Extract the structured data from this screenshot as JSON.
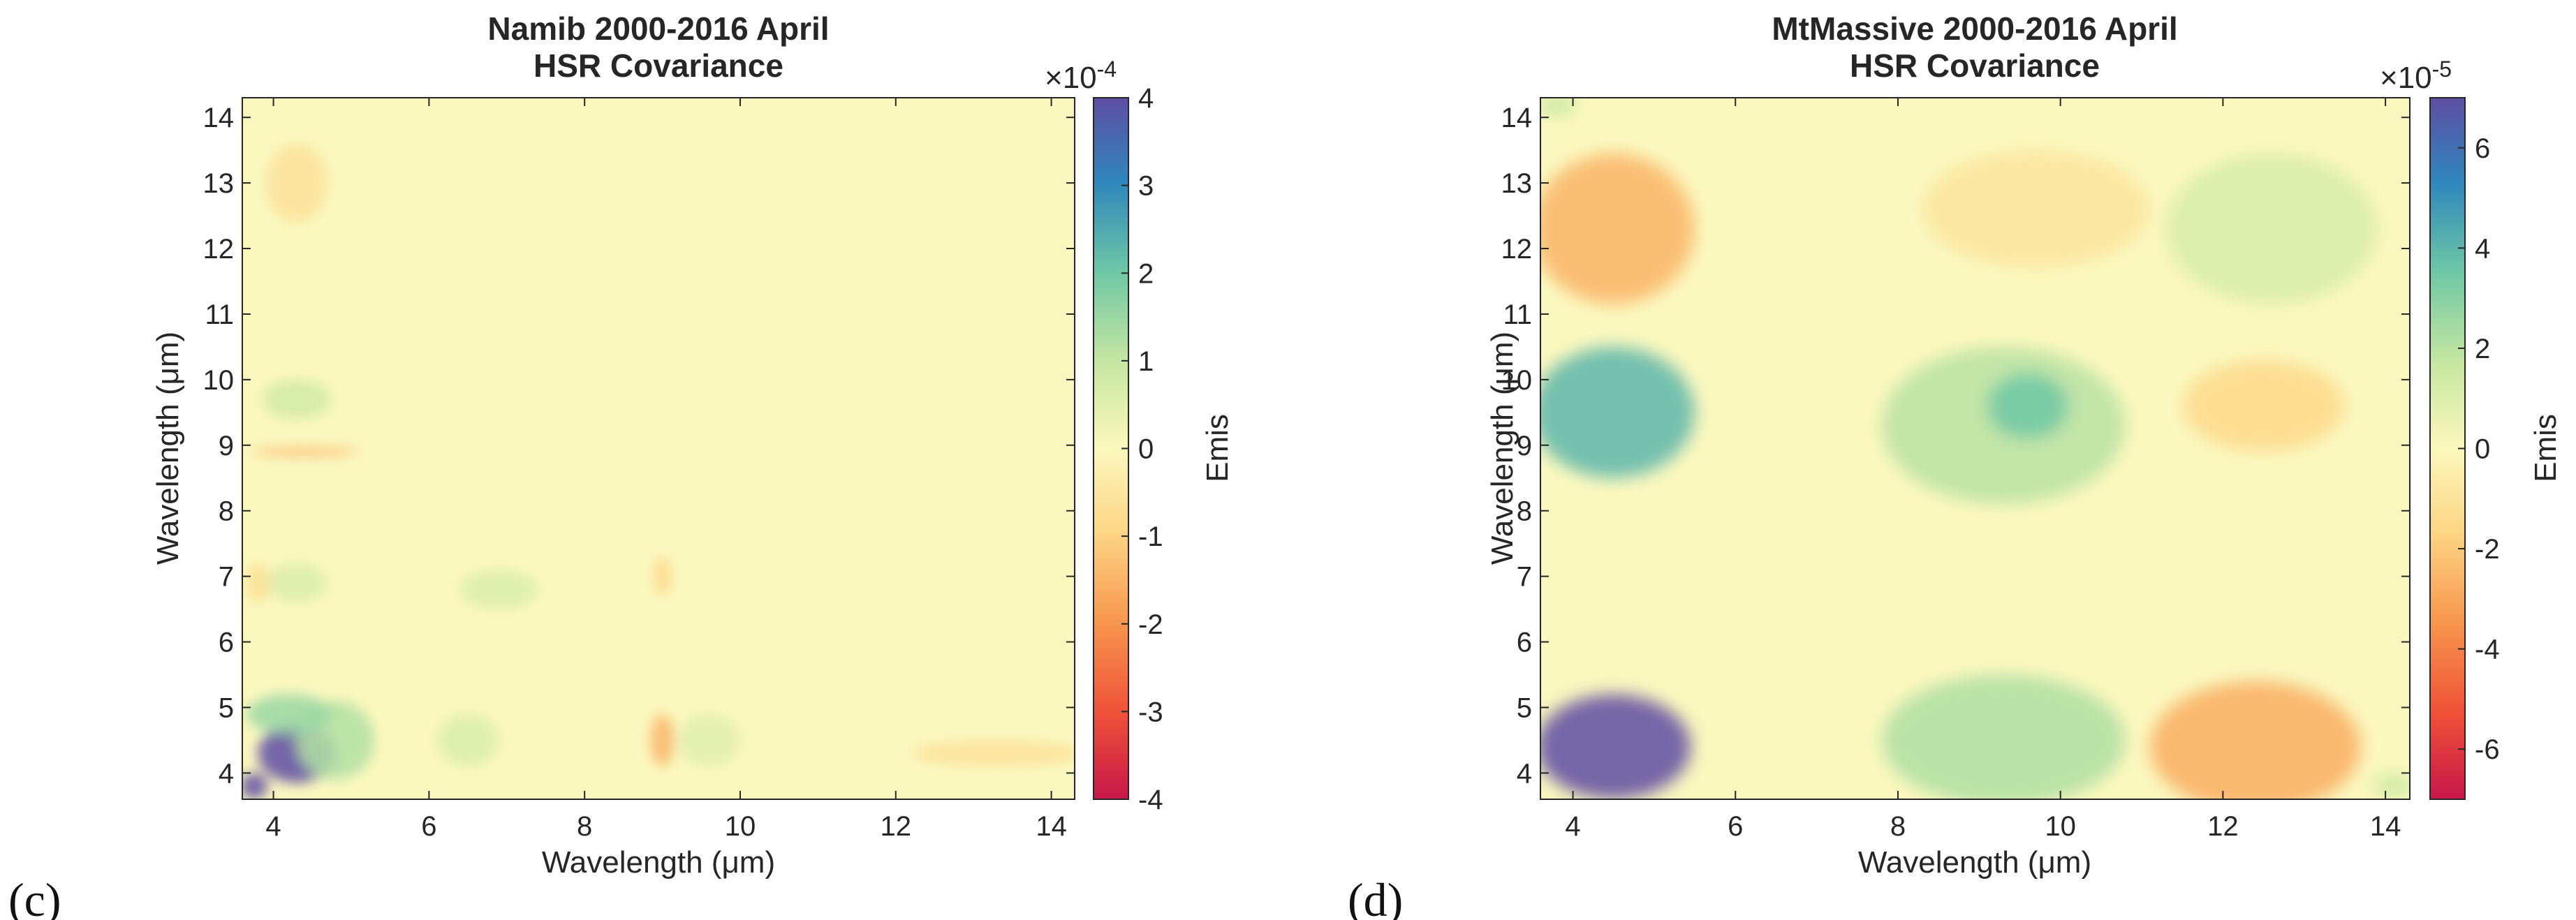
{
  "chart_data": [
    {
      "type": "heatmap",
      "panel_label": "(c)",
      "title_line1": "Namib 2000-2016 April",
      "title_line2": "HSR Covariance",
      "xlabel": "Wavelength (μm)",
      "ylabel": "Wavelength (μm)",
      "xlim": [
        3.6,
        14.3
      ],
      "ylim": [
        3.6,
        14.3
      ],
      "xticks": [
        4,
        6,
        8,
        10,
        12,
        14
      ],
      "yticks": [
        4,
        5,
        6,
        7,
        8,
        9,
        10,
        11,
        12,
        13,
        14
      ],
      "colorbar": {
        "label": "Emis",
        "exponent_prefix": "×10",
        "exponent": "-4",
        "range": [
          -4,
          4
        ],
        "ticks": [
          -4,
          -3,
          -2,
          -1,
          0,
          1,
          2,
          3,
          4
        ]
      },
      "features": [
        {
          "x": 4.3,
          "y": 4.3,
          "w": 1.0,
          "h": 0.9,
          "value": 4.5
        },
        {
          "x": 3.75,
          "y": 3.8,
          "w": 0.35,
          "h": 0.4,
          "value": 4.5
        },
        {
          "x": 4.8,
          "y": 4.5,
          "w": 1.0,
          "h": 1.2,
          "value": 1.2
        },
        {
          "x": 4.2,
          "y": 4.9,
          "w": 1.1,
          "h": 0.6,
          "value": 1.5
        },
        {
          "x": 4.3,
          "y": 9.7,
          "w": 0.9,
          "h": 0.6,
          "value": 0.8
        },
        {
          "x": 4.3,
          "y": 6.9,
          "w": 0.8,
          "h": 0.6,
          "value": 0.6
        },
        {
          "x": 3.8,
          "y": 6.9,
          "w": 0.3,
          "h": 0.6,
          "value": -0.7
        },
        {
          "x": 6.9,
          "y": 6.8,
          "w": 1.0,
          "h": 0.6,
          "value": 0.6
        },
        {
          "x": 4.3,
          "y": 13.0,
          "w": 0.8,
          "h": 1.2,
          "value": -0.6
        },
        {
          "x": 13.3,
          "y": 4.3,
          "w": 2.2,
          "h": 0.4,
          "value": -0.6
        },
        {
          "x": 9.0,
          "y": 4.5,
          "w": 0.3,
          "h": 0.8,
          "value": -1.5
        },
        {
          "x": 6.5,
          "y": 4.5,
          "w": 0.8,
          "h": 0.8,
          "value": 0.6
        },
        {
          "x": 9.6,
          "y": 4.5,
          "w": 0.8,
          "h": 0.8,
          "value": 0.5
        },
        {
          "x": 9.0,
          "y": 7.0,
          "w": 0.2,
          "h": 0.6,
          "value": -1.0
        },
        {
          "x": 4.4,
          "y": 8.9,
          "w": 1.4,
          "h": 0.12,
          "value": -1.5
        }
      ]
    },
    {
      "type": "heatmap",
      "panel_label": "(d)",
      "title_line1": "MtMassive 2000-2016 April",
      "title_line2": "HSR Covariance",
      "xlabel": "Wavelength (μm)",
      "ylabel": "Wavelength (μm)",
      "xlim": [
        3.6,
        14.3
      ],
      "ylim": [
        3.6,
        14.3
      ],
      "xticks": [
        4,
        6,
        8,
        10,
        12,
        14
      ],
      "yticks": [
        4,
        5,
        6,
        7,
        8,
        9,
        10,
        11,
        12,
        13,
        14
      ],
      "colorbar": {
        "label": "Emis",
        "exponent_prefix": "×10",
        "exponent": "-5",
        "range": [
          -7,
          7
        ],
        "ticks": [
          -6,
          -4,
          -2,
          0,
          2,
          4,
          6
        ]
      },
      "features": [
        {
          "x": 4.5,
          "y": 4.4,
          "w": 1.9,
          "h": 1.6,
          "value": 8.0
        },
        {
          "x": 4.5,
          "y": 9.5,
          "w": 2.0,
          "h": 2.0,
          "value": 4.0
        },
        {
          "x": 9.3,
          "y": 9.3,
          "w": 3.0,
          "h": 2.4,
          "value": 2.0
        },
        {
          "x": 9.6,
          "y": 9.6,
          "w": 1.0,
          "h": 1.0,
          "value": 3.5
        },
        {
          "x": 9.3,
          "y": 4.5,
          "w": 3.0,
          "h": 2.0,
          "value": 2.2
        },
        {
          "x": 4.5,
          "y": 12.3,
          "w": 2.0,
          "h": 2.3,
          "value": -2.6
        },
        {
          "x": 12.6,
          "y": 12.3,
          "w": 2.6,
          "h": 2.3,
          "value": 1.2
        },
        {
          "x": 12.4,
          "y": 4.4,
          "w": 2.6,
          "h": 2.0,
          "value": -2.8
        },
        {
          "x": 12.5,
          "y": 9.6,
          "w": 2.0,
          "h": 1.4,
          "value": -1.5
        },
        {
          "x": 9.7,
          "y": 12.6,
          "w": 2.8,
          "h": 1.8,
          "value": -0.9
        },
        {
          "x": 3.8,
          "y": 14.2,
          "w": 0.5,
          "h": 0.4,
          "value": 1.5
        },
        {
          "x": 14.1,
          "y": 3.8,
          "w": 0.5,
          "h": 0.4,
          "value": 1.5
        }
      ]
    }
  ]
}
